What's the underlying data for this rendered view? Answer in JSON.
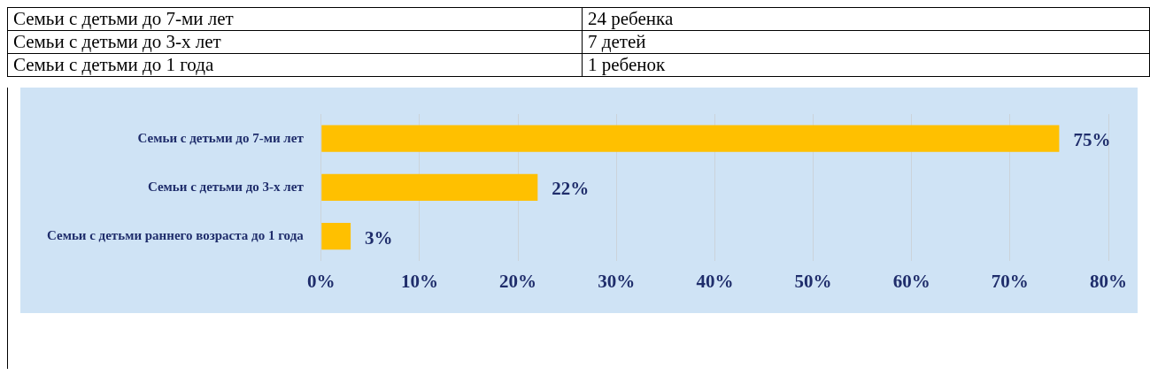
{
  "chart_data": [
    {
      "type": "other",
      "annotations": [
        "Семьи с детьми до 7-ми лет",
        "24 ребенка",
        "Семьи с детьми до 3-х лет",
        "7 детей",
        "Семьи с детьми до 1 года",
        "1 ребенок"
      ]
    },
    {
      "type": "bar",
      "orientation": "horizontal",
      "categories": [
        "Семьи с детьми до 7-ми лет",
        "Семьи с детьми до 3-х лет",
        "Семьи с детьми раннего возраста до 1 года"
      ],
      "values": [
        75,
        22,
        3
      ],
      "color": "#ffc000",
      "value_labels": [
        "75%",
        "22%",
        "3%"
      ],
      "xlim": [
        0,
        80
      ],
      "xticks": [
        {
          "value": 0,
          "label": "0%"
        },
        {
          "value": 10,
          "label": "10%"
        },
        {
          "value": 20,
          "label": "20%"
        },
        {
          "value": 30,
          "label": "30%"
        },
        {
          "value": 40,
          "label": "40%"
        },
        {
          "value": 50,
          "label": "50%"
        },
        {
          "value": 60,
          "label": "60%"
        },
        {
          "value": 70,
          "label": "70%"
        },
        {
          "value": 80,
          "label": "80%"
        }
      ],
      "grid": "x",
      "legend": false
    }
  ]
}
